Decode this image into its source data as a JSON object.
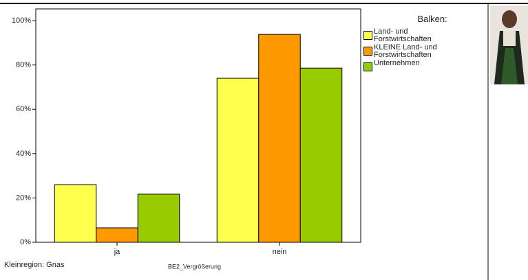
{
  "chart_data": {
    "type": "bar",
    "categories": [
      "ja",
      "nein"
    ],
    "series": [
      {
        "name": "Land- und Forstwirtschaften",
        "color": "#ffff4d",
        "values": [
          26.0,
          74.0
        ]
      },
      {
        "name": "KLEINE Land- und Forstwirtschaften",
        "color": "#ff9900",
        "values": [
          6.5,
          93.8
        ]
      },
      {
        "name": "Unternehmen",
        "color": "#99cc00",
        "values": [
          21.7,
          78.6
        ]
      }
    ],
    "ylim": [
      0,
      105.3
    ],
    "yticks": [
      {
        "value": 0,
        "label": "0%"
      },
      {
        "value": 20,
        "label": "20%"
      },
      {
        "value": 40,
        "label": "40%"
      },
      {
        "value": 60,
        "label": "60%"
      },
      {
        "value": 80,
        "label": "80%"
      },
      {
        "value": 100,
        "label": "100%"
      }
    ],
    "legend_title": "Balken:",
    "footnote": "Kleinregion: Gnas",
    "caption": "BE2_Vergrößerung"
  }
}
